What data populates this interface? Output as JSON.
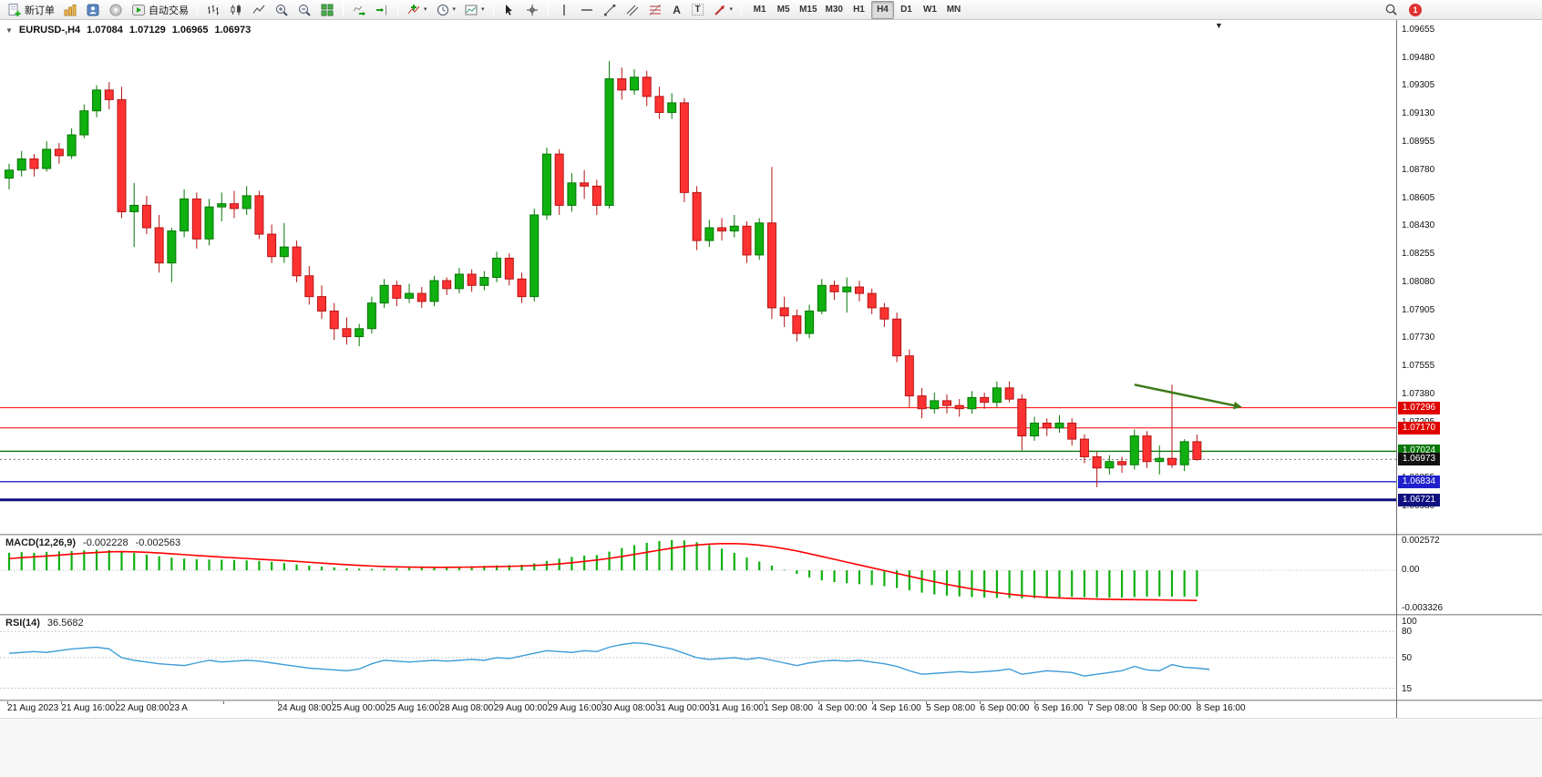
{
  "toolbar": {
    "new_order_label": "新订单",
    "auto_trading_label": "自动交易",
    "timeframes": [
      "M1",
      "M5",
      "M15",
      "M30",
      "H1",
      "H4",
      "D1",
      "W1",
      "MN"
    ],
    "active_timeframe": "H4",
    "notification_count": "1"
  },
  "icons": {
    "one_click": "▼",
    "chart_shift": "▼",
    "dropdown": "▾",
    "text_tool": "A",
    "text_label_tool": "T"
  },
  "chart": {
    "title": "EURUSD-,H4",
    "ohlc": {
      "open": "1.07084",
      "high": "1.07129",
      "low": "1.06965",
      "close": "1.06973"
    },
    "colors": {
      "up": "#10B010",
      "up_border": "#067806",
      "down": "#FF3232",
      "down_border": "#B41414",
      "background": "#FFFFFF"
    },
    "price_axis": {
      "max": 1.09717,
      "min": 1.06509,
      "ticks": [
        "1.09655",
        "1.09480",
        "1.09305",
        "1.09130",
        "1.08955",
        "1.08780",
        "1.08605",
        "1.08430",
        "1.08255",
        "1.08080",
        "1.07905",
        "1.07730",
        "1.07555",
        "1.07380",
        "1.07205",
        "1.07030",
        "1.06855",
        "1.06680"
      ]
    },
    "hlines": [
      {
        "price": 1.07296,
        "label": "1.07296",
        "color": "#FF0000",
        "width": 1,
        "badge_bg": "#E00000"
      },
      {
        "price": 1.0717,
        "label": "1.07170",
        "color": "#FF0000",
        "width": 1,
        "badge_bg": "#E00000"
      },
      {
        "price": 1.07024,
        "label": "1.07024",
        "color": "#067806",
        "width": 1.4,
        "badge_bg": "#067806"
      },
      {
        "price": 1.06834,
        "label": "1.06834",
        "color": "#2020CC",
        "width": 1.4,
        "badge_bg": "#2020CC"
      },
      {
        "price": 1.06721,
        "label": "1.06721",
        "color": "#101080",
        "width": 3,
        "badge_bg": "#101080"
      }
    ],
    "current_price": {
      "value": 1.06973,
      "label": "1.06973",
      "badge_bg": "#111111",
      "line_color": "#777777"
    },
    "arrow": {
      "from_bar": 90,
      "from_price": 1.0744,
      "to_bar": 98.6,
      "to_price": 1.073,
      "color": "#3E7A1A",
      "width": 2.5
    },
    "candles": [
      [
        1.0873,
        1.0882,
        1.0866,
        1.0878
      ],
      [
        1.0878,
        1.089,
        1.0874,
        1.0885
      ],
      [
        1.0885,
        1.0888,
        1.0874,
        1.0879
      ],
      [
        1.0879,
        1.0896,
        1.0877,
        1.0891
      ],
      [
        1.0891,
        1.0895,
        1.0882,
        1.0887
      ],
      [
        1.0887,
        1.0904,
        1.0885,
        1.09
      ],
      [
        1.09,
        1.0919,
        1.0898,
        1.0915
      ],
      [
        1.0915,
        1.0931,
        1.0911,
        1.0928
      ],
      [
        1.0928,
        1.0933,
        1.0916,
        1.0922
      ],
      [
        1.0922,
        1.093,
        1.0848,
        1.0852
      ],
      [
        1.0852,
        1.087,
        1.083,
        1.0856
      ],
      [
        1.0856,
        1.0862,
        1.0838,
        1.0842
      ],
      [
        1.0842,
        1.085,
        1.0814,
        1.082
      ],
      [
        1.082,
        1.0842,
        1.0808,
        1.084
      ],
      [
        1.084,
        1.0866,
        1.0836,
        1.086
      ],
      [
        1.086,
        1.0864,
        1.0829,
        1.0835
      ],
      [
        1.0835,
        1.086,
        1.0831,
        1.0855
      ],
      [
        1.0855,
        1.0864,
        1.0846,
        1.0857
      ],
      [
        1.0857,
        1.0865,
        1.0848,
        1.0854
      ],
      [
        1.0854,
        1.0868,
        1.085,
        1.0862
      ],
      [
        1.0862,
        1.0865,
        1.0835,
        1.0838
      ],
      [
        1.0838,
        1.0844,
        1.082,
        1.0824
      ],
      [
        1.0824,
        1.0845,
        1.082,
        1.083
      ],
      [
        1.083,
        1.0834,
        1.0808,
        1.0812
      ],
      [
        1.0812,
        1.0818,
        1.0794,
        1.0799
      ],
      [
        1.0799,
        1.0806,
        1.0785,
        1.079
      ],
      [
        1.079,
        1.0795,
        1.0772,
        1.0779
      ],
      [
        1.0779,
        1.0786,
        1.0769,
        1.0774
      ],
      [
        1.0774,
        1.0782,
        1.0768,
        1.0779
      ],
      [
        1.0779,
        1.0799,
        1.0776,
        1.0795
      ],
      [
        1.0795,
        1.081,
        1.0792,
        1.0806
      ],
      [
        1.0806,
        1.0809,
        1.0793,
        1.0798
      ],
      [
        1.0798,
        1.0807,
        1.0795,
        1.0801
      ],
      [
        1.0801,
        1.0805,
        1.0792,
        1.0796
      ],
      [
        1.0796,
        1.0812,
        1.0793,
        1.0809
      ],
      [
        1.0809,
        1.0811,
        1.08,
        1.0804
      ],
      [
        1.0804,
        1.0817,
        1.0801,
        1.0813
      ],
      [
        1.0813,
        1.0816,
        1.0802,
        1.0806
      ],
      [
        1.0806,
        1.0815,
        1.0803,
        1.0811
      ],
      [
        1.0811,
        1.0827,
        1.0808,
        1.0823
      ],
      [
        1.0823,
        1.0826,
        1.0806,
        1.081
      ],
      [
        1.081,
        1.0814,
        1.0795,
        1.0799
      ],
      [
        1.0799,
        1.0854,
        1.0796,
        1.085
      ],
      [
        1.085,
        1.0892,
        1.0847,
        1.0888
      ],
      [
        1.0888,
        1.0891,
        1.085,
        1.0856
      ],
      [
        1.0856,
        1.0876,
        1.0852,
        1.087
      ],
      [
        1.087,
        1.0878,
        1.086,
        1.0868
      ],
      [
        1.0868,
        1.0872,
        1.085,
        1.0856
      ],
      [
        1.0856,
        1.0946,
        1.0854,
        1.0935
      ],
      [
        1.0935,
        1.0942,
        1.0922,
        1.0928
      ],
      [
        1.0928,
        1.0941,
        1.0925,
        1.0936
      ],
      [
        1.0936,
        1.094,
        1.0918,
        1.0924
      ],
      [
        1.0924,
        1.093,
        1.091,
        1.0914
      ],
      [
        1.0914,
        1.0926,
        1.091,
        1.092
      ],
      [
        1.092,
        1.0923,
        1.0858,
        1.0864
      ],
      [
        1.0864,
        1.0868,
        1.0828,
        1.0834
      ],
      [
        1.0834,
        1.0847,
        1.083,
        1.0842
      ],
      [
        1.0842,
        1.0848,
        1.0834,
        1.084
      ],
      [
        1.084,
        1.085,
        1.0836,
        1.0843
      ],
      [
        1.0843,
        1.0846,
        1.082,
        1.0825
      ],
      [
        1.0825,
        1.0848,
        1.0822,
        1.0845
      ],
      [
        1.0845,
        1.088,
        1.0785,
        1.0792
      ],
      [
        1.0792,
        1.0799,
        1.078,
        1.0787
      ],
      [
        1.0787,
        1.0791,
        1.0771,
        1.0776
      ],
      [
        1.0776,
        1.0794,
        1.0773,
        1.079
      ],
      [
        1.079,
        1.081,
        1.0788,
        1.0806
      ],
      [
        1.0806,
        1.0809,
        1.0797,
        1.0802
      ],
      [
        1.0802,
        1.0811,
        1.0789,
        1.0805
      ],
      [
        1.0805,
        1.0809,
        1.0796,
        1.0801
      ],
      [
        1.0801,
        1.0804,
        1.0788,
        1.0792
      ],
      [
        1.0792,
        1.0795,
        1.078,
        1.0785
      ],
      [
        1.0785,
        1.0789,
        1.0758,
        1.0762
      ],
      [
        1.0762,
        1.0766,
        1.073,
        1.0737
      ],
      [
        1.0737,
        1.0742,
        1.0723,
        1.0729
      ],
      [
        1.0729,
        1.0739,
        1.0726,
        1.0734
      ],
      [
        1.0734,
        1.0738,
        1.0726,
        1.0731
      ],
      [
        1.0731,
        1.0735,
        1.0724,
        1.0729
      ],
      [
        1.0729,
        1.074,
        1.0726,
        1.0736
      ],
      [
        1.0736,
        1.0739,
        1.0729,
        1.0733
      ],
      [
        1.0733,
        1.0746,
        1.073,
        1.0742
      ],
      [
        1.0742,
        1.0746,
        1.0733,
        1.0735
      ],
      [
        1.0735,
        1.0738,
        1.0703,
        1.0712
      ],
      [
        1.0712,
        1.0724,
        1.0709,
        1.072
      ],
      [
        1.072,
        1.0723,
        1.0712,
        1.0717
      ],
      [
        1.0717,
        1.0725,
        1.0714,
        1.072
      ],
      [
        1.072,
        1.0723,
        1.0706,
        1.071
      ],
      [
        1.071,
        1.0713,
        1.0695,
        1.0699
      ],
      [
        1.0699,
        1.0702,
        1.068,
        1.0692
      ],
      [
        1.0692,
        1.07,
        1.0688,
        1.0696
      ],
      [
        1.0696,
        1.0699,
        1.0689,
        1.0694
      ],
      [
        1.0694,
        1.0716,
        1.0691,
        1.0712
      ],
      [
        1.0712,
        1.0715,
        1.0692,
        1.0696
      ],
      [
        1.0696,
        1.0706,
        1.0688,
        1.0698
      ],
      [
        1.0698,
        1.0744,
        1.0692,
        1.0694
      ],
      [
        1.0694,
        1.071,
        1.069,
        1.07084
      ],
      [
        1.07084,
        1.07129,
        1.06965,
        1.06973
      ]
    ]
  },
  "macd": {
    "name": "MACD(12,26,9)",
    "main_value": "-0.002228",
    "signal_value": "-0.002563",
    "axis_ticks": [
      "0.002572",
      "0.00",
      "-0.003326"
    ],
    "range": [
      -0.003326,
      0.002572
    ],
    "colors": {
      "histogram": "#10B010",
      "signal": "#FF0000"
    },
    "histogram": [
      0.0015,
      0.00155,
      0.0015,
      0.00158,
      0.00162,
      0.00165,
      0.0017,
      0.00175,
      0.00172,
      0.0016,
      0.00148,
      0.00135,
      0.0012,
      0.00108,
      0.001,
      0.00095,
      0.00092,
      0.0009,
      0.00088,
      0.00085,
      0.0008,
      0.00072,
      0.00062,
      0.0005,
      0.0004,
      0.00032,
      0.00025,
      0.00018,
      0.00014,
      0.00012,
      0.00014,
      0.00018,
      0.00022,
      0.00025,
      0.00028,
      0.0003,
      0.00032,
      0.00035,
      0.00038,
      0.00042,
      0.00045,
      0.00048,
      0.0006,
      0.0008,
      0.001,
      0.00115,
      0.00125,
      0.0013,
      0.0016,
      0.0019,
      0.00215,
      0.00235,
      0.0025,
      0.00258,
      0.00255,
      0.0024,
      0.00215,
      0.00185,
      0.0015,
      0.0011,
      0.00075,
      0.0004,
      5e-05,
      -0.0003,
      -0.0006,
      -0.00085,
      -0.001,
      -0.0011,
      -0.00118,
      -0.00125,
      -0.00135,
      -0.0015,
      -0.0017,
      -0.0019,
      -0.00205,
      -0.00215,
      -0.00222,
      -0.00228,
      -0.00232,
      -0.00235,
      -0.00236,
      -0.00238,
      -0.00236,
      -0.00232,
      -0.00228,
      -0.00226,
      -0.00228,
      -0.00232,
      -0.00234,
      -0.00232,
      -0.00228,
      -0.00224,
      -0.00222,
      -0.00223,
      -0.00224,
      -0.002228
    ],
    "signal": [
      0.001,
      0.00108,
      0.00115,
      0.00122,
      0.0013,
      0.00138,
      0.00146,
      0.00152,
      0.00158,
      0.0016,
      0.00158,
      0.00154,
      0.00148,
      0.00141,
      0.00134,
      0.00127,
      0.0012,
      0.00113,
      0.00107,
      0.00101,
      0.00095,
      0.00089,
      0.00083,
      0.00076,
      0.00069,
      0.00062,
      0.00055,
      0.00048,
      0.00042,
      0.00037,
      0.00033,
      0.0003,
      0.00028,
      0.00027,
      0.00026,
      0.00026,
      0.00027,
      0.00028,
      0.0003,
      0.00032,
      0.00034,
      0.00037,
      0.00041,
      0.00047,
      0.00055,
      0.00065,
      0.00076,
      0.00088,
      0.00102,
      0.00118,
      0.00136,
      0.00154,
      0.00172,
      0.00189,
      0.00204,
      0.00216,
      0.00224,
      0.00228,
      0.00228,
      0.00224,
      0.00215,
      0.00202,
      0.00185,
      0.00165,
      0.00142,
      0.00118,
      0.00094,
      0.0007,
      0.00046,
      0.00022,
      -2e-05,
      -0.00026,
      -0.0005,
      -0.00074,
      -0.00097,
      -0.00119,
      -0.00139,
      -0.00158,
      -0.00175,
      -0.0019,
      -0.00203,
      -0.00214,
      -0.00223,
      -0.0023,
      -0.00235,
      -0.00239,
      -0.00242,
      -0.00245,
      -0.00247,
      -0.00249,
      -0.0025,
      -0.00251,
      -0.00252,
      -0.00254,
      -0.00255,
      -0.002563
    ]
  },
  "rsi": {
    "name": "RSI(14)",
    "value": "36.5682",
    "color": "#3E9CD8",
    "levels": [
      80,
      50,
      15
    ],
    "axis_ticks": [
      "100",
      "80",
      "50",
      "15"
    ],
    "series": [
      55,
      56,
      57,
      56,
      58,
      60,
      61,
      62,
      60,
      50,
      47,
      45,
      43,
      42,
      41,
      44,
      47,
      45,
      46,
      47,
      46,
      44,
      42,
      40,
      38,
      37,
      36,
      35,
      37,
      43,
      47,
      46,
      45,
      46,
      47,
      46,
      47,
      48,
      47,
      50,
      49,
      52,
      55,
      58,
      57,
      56,
      58,
      57,
      62,
      65,
      67,
      66,
      63,
      60,
      55,
      50,
      48,
      49,
      50,
      48,
      50,
      47,
      44,
      41,
      44,
      46,
      47,
      46,
      47,
      45,
      43,
      40,
      35,
      31,
      32,
      33,
      34,
      33,
      34,
      35,
      37,
      31,
      33,
      35,
      34,
      33,
      29,
      31,
      33,
      35,
      40,
      36,
      35,
      42,
      39,
      38,
      36.57
    ]
  },
  "time_axis": {
    "labels": [
      "21 Aug 2023",
      "21 Aug 16:00",
      "22 Aug 08:00",
      "23 A",
      " ",
      "24 Aug 08:00",
      "25 Aug 00:00",
      "25 Aug 16:00",
      "28 Aug 08:00",
      "29 Aug 00:00",
      "29 Aug 16:00",
      "30 Aug 08:00",
      "31 Aug 00:00",
      "31 Aug 16:00",
      "1 Sep 08:00",
      "4 Sep 00:00",
      "4 Sep 16:00",
      "5 Sep 08:00",
      "6 Sep 00:00",
      "6 Sep 16:00",
      "7 Sep 08:00",
      "8 Sep 00:00",
      "8 Sep 16:00"
    ]
  }
}
